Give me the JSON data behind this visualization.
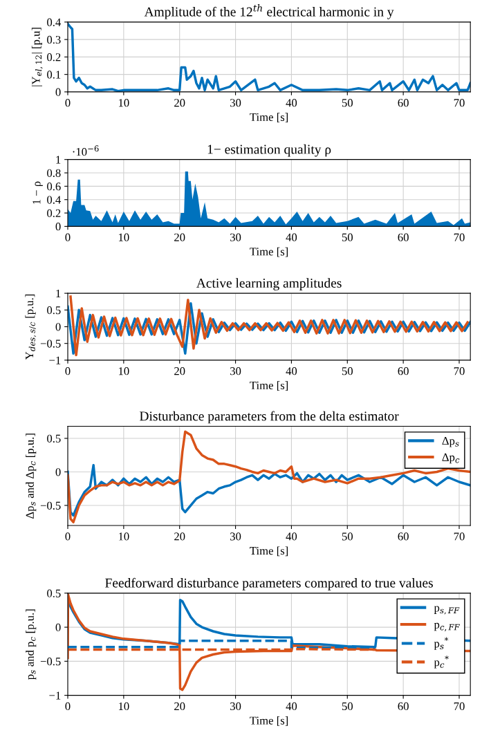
{
  "chart_data": [
    {
      "type": "line",
      "title": "Amplitude of the 12$^{th}$ electrical harmonic in y",
      "xlabel": "Time [s]",
      "ylabel": "|Y$_{el,12}$| [p.u]",
      "xlim": [
        0,
        72
      ],
      "xticks": [
        0,
        10,
        20,
        30,
        40,
        50,
        60,
        70
      ],
      "ylim": [
        0,
        0.4
      ],
      "yticks": [
        0,
        0.1,
        0.2,
        0.3,
        0.4
      ],
      "grid": true,
      "legend": false,
      "series": [
        {
          "color": "#0072bd",
          "x": [
            0,
            0.5,
            0.8,
            1.1,
            1.5,
            2,
            2.5,
            3,
            3.5,
            4,
            5,
            6,
            8,
            9,
            10,
            12,
            14,
            16,
            18,
            19,
            20,
            20.3,
            21,
            21.3,
            22,
            22.5,
            23,
            23.5,
            24,
            24.5,
            25,
            26,
            26.5,
            27,
            29,
            30,
            31,
            33.5,
            34,
            36,
            37,
            38,
            40,
            42,
            45,
            48,
            50,
            52,
            54,
            55.8,
            56.2,
            57.6,
            58,
            60,
            61,
            62,
            62.5,
            63.5,
            64.5,
            65.3,
            66,
            67,
            68,
            69.5,
            70,
            71.5,
            72
          ],
          "values": [
            0.39,
            0.37,
            0.36,
            0.08,
            0.06,
            0.08,
            0.05,
            0.04,
            0.02,
            0.03,
            0.01,
            0.01,
            0.015,
            0.005,
            0.01,
            0.01,
            0.01,
            0.01,
            0.02,
            0.01,
            0.01,
            0.14,
            0.14,
            0.07,
            0.09,
            0.12,
            0.05,
            0.02,
            0.08,
            0.01,
            0.07,
            0.02,
            0.09,
            0.01,
            0.03,
            0.06,
            0.01,
            0.07,
            0.01,
            0.03,
            0.05,
            0.01,
            0.04,
            0.01,
            0.01,
            0.015,
            0.01,
            0.02,
            0.01,
            0.06,
            0.01,
            0.05,
            0.01,
            0.06,
            0.01,
            0.07,
            0.01,
            0.07,
            0.05,
            0.09,
            0.01,
            0.04,
            0.01,
            0.05,
            0.01,
            0.01,
            0.05
          ]
        }
      ]
    },
    {
      "type": "area",
      "title": "1− estimation quality ρ",
      "xlabel": "Time [s]",
      "ylabel": "1 − ρ",
      "annotations": [
        "·10$^{−6}$"
      ],
      "xlim": [
        0,
        72
      ],
      "xticks": [
        0,
        10,
        20,
        30,
        40,
        50,
        60,
        70
      ],
      "ylim": [
        0,
        1
      ],
      "yticks": [
        0,
        0.2,
        0.4,
        0.6,
        0.8,
        1
      ],
      "grid": true,
      "legend": false,
      "series": [
        {
          "color": "#0072bd",
          "x": [
            0,
            0.5,
            1,
            1.5,
            1.8,
            2.2,
            2.4,
            3,
            3.3,
            4,
            4.5,
            5,
            6,
            7,
            8,
            8.5,
            9,
            10,
            11,
            12,
            13,
            14,
            15,
            16,
            17,
            18,
            19,
            20,
            20.2,
            20.8,
            21,
            21.5,
            21.6,
            22,
            22.3,
            22.8,
            23.3,
            23.8,
            24.5,
            25,
            26,
            27,
            28,
            29,
            30,
            31,
            33,
            34,
            35,
            36,
            37,
            38,
            39,
            40,
            41,
            42,
            43,
            44,
            45,
            46,
            47,
            48,
            50,
            52,
            53,
            55,
            57,
            58.5,
            59,
            61.5,
            62,
            65,
            66,
            68,
            69,
            70.5,
            71,
            72
          ],
          "values": [
            0.26,
            0.2,
            0.38,
            0.38,
            0.7,
            0.7,
            0.32,
            0.32,
            0.24,
            0.23,
            0.1,
            0.16,
            0.08,
            0.24,
            0.06,
            0.18,
            0.05,
            0.22,
            0.08,
            0.24,
            0.1,
            0.22,
            0.1,
            0.18,
            0.06,
            0.08,
            0.04,
            0.04,
            0.2,
            0.2,
            0.82,
            0.82,
            0.68,
            0.68,
            0.4,
            0.64,
            0.44,
            0.12,
            0.36,
            0.12,
            0.1,
            0.06,
            0.12,
            0.04,
            0.14,
            0.05,
            0.08,
            0.16,
            0.04,
            0.14,
            0.06,
            0.16,
            0.03,
            0.12,
            0.22,
            0.08,
            0.2,
            0.06,
            0.14,
            0.06,
            0.16,
            0.05,
            0.08,
            0.14,
            0.04,
            0.1,
            0.04,
            0.2,
            0.05,
            0.18,
            0.04,
            0.22,
            0.05,
            0.08,
            0.02,
            0.12,
            0.04,
            0.06
          ]
        }
      ]
    },
    {
      "type": "line",
      "title": "Active learning amplitudes",
      "xlabel": "Time [s]",
      "ylabel": "Y$_{des,s/c}$ [p.u.]",
      "xlim": [
        0,
        72
      ],
      "xticks": [
        0,
        10,
        20,
        30,
        40,
        50,
        60,
        70
      ],
      "ylim": [
        -1,
        1
      ],
      "yticks": [
        -1,
        -0.5,
        0,
        0.5,
        1
      ],
      "grid": true,
      "legend": false,
      "series": [
        {
          "color": "#0072bd",
          "x": [
            0,
            1,
            2,
            3,
            4,
            5,
            6,
            7,
            8,
            9,
            10,
            11,
            12,
            13,
            14,
            15,
            16,
            17,
            18,
            19,
            20,
            21,
            22,
            23,
            24,
            25,
            26,
            27,
            28,
            29,
            30,
            31,
            32,
            33,
            34,
            35,
            36,
            37,
            38,
            39,
            40,
            41,
            42,
            43,
            44,
            45,
            46,
            47,
            48,
            49,
            50,
            51,
            52,
            53,
            54,
            55,
            56,
            57,
            58,
            59,
            60,
            61,
            62,
            63,
            64,
            65,
            66,
            67,
            68,
            69,
            70,
            71,
            72
          ],
          "values": [
            0.6,
            -0.8,
            0.5,
            -0.4,
            0.35,
            -0.3,
            0.28,
            -0.27,
            0.26,
            -0.25,
            0.25,
            -0.24,
            0.24,
            -0.23,
            0.23,
            -0.23,
            0.22,
            -0.22,
            0.22,
            -0.22,
            0.2,
            -0.8,
            0.7,
            -0.5,
            0.4,
            -0.3,
            0.22,
            -0.16,
            0.12,
            -0.1,
            0.1,
            -0.09,
            0.09,
            -0.09,
            0.09,
            -0.1,
            0.1,
            -0.1,
            0.12,
            -0.12,
            0.15,
            -0.16,
            0.17,
            -0.17,
            0.18,
            -0.18,
            0.18,
            -0.18,
            0.2,
            -0.18,
            0.18,
            -0.18,
            0.18,
            -0.17,
            0.17,
            -0.16,
            0.16,
            -0.15,
            0.15,
            -0.14,
            0.15,
            -0.14,
            0.14,
            -0.13,
            0.13,
            -0.13,
            0.13,
            -0.12,
            0.12,
            -0.12,
            0.12,
            -0.12,
            0.14
          ]
        },
        {
          "color": "#d95319",
          "x": [
            0.5,
            1.5,
            2.5,
            3.5,
            4.5,
            5.5,
            6.5,
            7.5,
            8.5,
            9.5,
            10.5,
            11.5,
            12.5,
            13.5,
            14.5,
            15.5,
            16.5,
            17.5,
            18.5,
            19.5,
            20.5,
            21.5,
            22.5,
            23.5,
            24.5,
            25.5,
            26.5,
            27.5,
            28.5,
            29.5,
            30.5,
            31.5,
            32.5,
            33.5,
            34.5,
            35.5,
            36.5,
            37.5,
            38.5,
            39.5,
            40.5,
            41.5,
            42.5,
            43.5,
            44.5,
            45.5,
            46.5,
            47.5,
            48.5,
            49.5,
            50.5,
            51.5,
            52.5,
            53.5,
            54.5,
            55.5,
            56.5,
            57.5,
            58.5,
            59.5,
            60.5,
            61.5,
            62.5,
            63.5,
            64.5,
            65.5,
            66.5,
            67.5,
            68.5,
            69.5,
            70.5,
            71.5
          ],
          "values": [
            0.9,
            -0.85,
            0.55,
            -0.45,
            0.35,
            -0.32,
            0.3,
            -0.28,
            0.27,
            -0.26,
            0.26,
            -0.25,
            0.25,
            -0.25,
            0.24,
            -0.24,
            0.24,
            -0.23,
            0.23,
            -0.23,
            -0.6,
            0.8,
            -0.65,
            0.5,
            -0.35,
            0.25,
            -0.18,
            0.14,
            -0.12,
            0.1,
            -0.1,
            0.1,
            -0.1,
            0.1,
            -0.1,
            0.1,
            -0.11,
            0.11,
            -0.12,
            0.13,
            -0.16,
            0.18,
            -0.18,
            0.18,
            -0.2,
            0.2,
            -0.2,
            0.2,
            -0.2,
            0.2,
            -0.19,
            0.19,
            -0.18,
            0.18,
            -0.17,
            0.17,
            -0.16,
            0.16,
            -0.15,
            0.15,
            -0.15,
            0.15,
            -0.14,
            0.14,
            -0.14,
            0.14,
            -0.13,
            0.13,
            -0.13,
            0.13,
            -0.13,
            0.13
          ]
        }
      ]
    },
    {
      "type": "line",
      "title": "Disturbance parameters from the delta estimator",
      "xlabel": "Time [s]",
      "ylabel": "Δp$_{s}$ and Δp$_{c}$ [p.u.]",
      "xlim": [
        0,
        72
      ],
      "xticks": [
        0,
        10,
        20,
        30,
        40,
        50,
        60,
        70
      ],
      "ylim": [
        -0.8,
        0.68
      ],
      "yticks": [
        -0.5,
        0,
        0.5
      ],
      "grid": true,
      "legend": "top right",
      "series": [
        {
          "name": "Δp$_{s}$",
          "color": "#0072bd",
          "x": [
            0,
            0.5,
            1,
            2,
            3,
            4,
            4.6,
            5,
            6,
            7,
            8,
            9,
            10,
            11,
            12,
            13,
            14,
            15,
            16,
            17,
            18,
            19,
            20,
            20.5,
            21,
            22,
            23,
            24,
            25,
            26,
            27,
            28,
            29,
            30,
            31,
            32,
            33,
            34,
            35,
            36,
            37,
            38,
            39,
            40,
            41,
            42,
            43,
            44,
            45,
            46,
            47,
            48,
            49,
            50,
            52,
            54,
            56,
            58,
            60,
            62,
            64,
            66,
            68,
            70,
            72
          ],
          "values": [
            0,
            -0.6,
            -0.65,
            -0.45,
            -0.3,
            -0.22,
            0.1,
            -0.25,
            -0.15,
            -0.2,
            -0.12,
            -0.2,
            -0.1,
            -0.18,
            -0.1,
            -0.15,
            -0.08,
            -0.18,
            -0.1,
            -0.15,
            -0.08,
            -0.15,
            -0.12,
            -0.55,
            -0.6,
            -0.5,
            -0.4,
            -0.35,
            -0.3,
            -0.32,
            -0.25,
            -0.22,
            -0.2,
            -0.15,
            -0.12,
            -0.08,
            -0.05,
            -0.12,
            -0.05,
            -0.1,
            -0.03,
            -0.08,
            -0.05,
            -0.1,
            -0.02,
            -0.15,
            -0.05,
            -0.1,
            -0.03,
            -0.12,
            -0.05,
            -0.15,
            -0.05,
            -0.12,
            -0.05,
            -0.15,
            -0.08,
            -0.18,
            -0.05,
            -0.15,
            -0.08,
            -0.2,
            -0.08,
            -0.15,
            -0.2
          ]
        },
        {
          "name": "Δp$_{c}$",
          "color": "#d95319",
          "x": [
            0,
            0.5,
            1,
            2,
            3,
            4,
            5,
            6,
            7,
            8,
            9,
            10,
            11,
            12,
            13,
            14,
            15,
            16,
            17,
            18,
            19,
            20,
            20.5,
            21,
            22,
            23,
            24,
            25,
            26,
            27,
            28,
            29,
            30,
            31,
            32,
            33,
            34,
            35,
            36,
            37,
            38,
            39,
            40,
            40.5,
            41,
            42,
            44,
            46,
            48,
            50,
            52,
            54,
            56,
            58,
            60,
            62,
            64,
            66,
            68,
            70,
            72
          ],
          "values": [
            -0.05,
            -0.7,
            -0.75,
            -0.5,
            -0.35,
            -0.28,
            -0.22,
            -0.2,
            -0.2,
            -0.15,
            -0.18,
            -0.15,
            -0.2,
            -0.17,
            -0.2,
            -0.15,
            -0.2,
            -0.15,
            -0.2,
            -0.15,
            -0.18,
            -0.13,
            0.3,
            0.6,
            0.55,
            0.35,
            0.25,
            0.2,
            0.18,
            0.12,
            0.12,
            0.1,
            0.08,
            0.05,
            0.03,
            0,
            -0.02,
            0.02,
            0,
            -0.02,
            0.02,
            0,
            0.08,
            -0.1,
            -0.1,
            -0.15,
            -0.1,
            -0.15,
            -0.12,
            -0.17,
            -0.1,
            -0.1,
            -0.08,
            -0.05,
            -0.02,
            0.02,
            -0.02,
            0,
            0.05,
            0.02,
            0
          ]
        }
      ]
    },
    {
      "type": "line",
      "title": "Feedforward disturbance parameters compared to true values",
      "xlabel": "Time [s]",
      "ylabel": "p$_{s}$ and p$_{c}$ [p.u.]",
      "xlim": [
        0,
        72
      ],
      "xticks": [
        0,
        10,
        20,
        30,
        40,
        50,
        60,
        70
      ],
      "ylim": [
        -1,
        0.5
      ],
      "yticks": [
        -1,
        -0.5,
        0,
        0.5
      ],
      "grid": true,
      "legend": "top right",
      "series": [
        {
          "name": "p$_{s,FF}$",
          "color": "#0072bd",
          "line_style": "solid",
          "x": [
            0,
            0.5,
            1,
            2,
            3,
            4,
            6,
            8,
            10,
            14,
            18,
            20,
            20.1,
            20.5,
            21,
            22,
            23,
            24,
            26,
            28,
            30,
            34,
            38,
            40,
            40.2,
            45,
            50,
            55,
            55.2,
            58,
            72
          ],
          "values": [
            0.45,
            0.3,
            0.22,
            0.08,
            -0.03,
            -0.08,
            -0.12,
            -0.16,
            -0.18,
            -0.2,
            -0.23,
            -0.25,
            0.4,
            0.38,
            0.3,
            0.15,
            0.05,
            0,
            -0.06,
            -0.1,
            -0.12,
            -0.14,
            -0.15,
            -0.15,
            -0.25,
            -0.25,
            -0.28,
            -0.29,
            -0.15,
            -0.16,
            -0.2
          ]
        },
        {
          "name": "p$_{c,FF}$",
          "color": "#d95319",
          "line_style": "solid",
          "x": [
            0,
            0.05,
            0.5,
            1,
            2,
            3,
            4,
            6,
            8,
            10,
            14,
            18,
            20,
            20.1,
            20.5,
            21,
            22,
            23,
            24,
            26,
            28,
            30,
            35,
            40,
            40.2,
            45,
            50,
            55,
            55.2,
            72
          ],
          "values": [
            -0.45,
            0.48,
            0.35,
            0.25,
            0.1,
            -0.01,
            -0.06,
            -0.1,
            -0.14,
            -0.17,
            -0.2,
            -0.23,
            -0.26,
            -0.9,
            -0.92,
            -0.85,
            -0.65,
            -0.52,
            -0.45,
            -0.4,
            -0.37,
            -0.36,
            -0.35,
            -0.35,
            -0.27,
            -0.29,
            -0.31,
            -0.33,
            -0.34,
            -0.35
          ]
        },
        {
          "name": "p$_{s}$$^{*}$",
          "color": "#0072bd",
          "line_style": "dashed",
          "x": [
            0,
            20,
            20,
            40,
            40,
            55
          ],
          "values": [
            -0.29,
            -0.29,
            -0.2,
            -0.2,
            -0.3,
            -0.3
          ]
        },
        {
          "name": "p$_{c}$$^{*}$",
          "color": "#d95319",
          "line_style": "dashed",
          "x": [
            0,
            20,
            20,
            40,
            40,
            55
          ],
          "values": [
            -0.33,
            -0.33,
            -0.33,
            -0.33,
            -0.32,
            -0.33
          ]
        }
      ]
    }
  ]
}
